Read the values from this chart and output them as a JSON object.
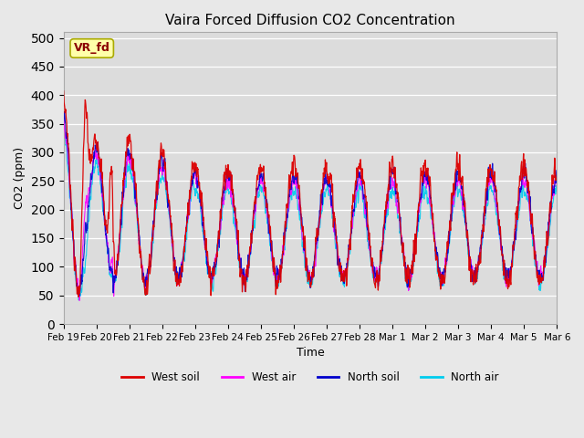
{
  "title": "Vaira Forced Diffusion CO2 Concentration",
  "xlabel": "Time",
  "ylabel": "CO2 (ppm)",
  "ylim": [
    0,
    510
  ],
  "yticks": [
    0,
    50,
    100,
    150,
    200,
    250,
    300,
    350,
    400,
    450,
    500
  ],
  "colors": {
    "west_soil": "#dd0000",
    "west_air": "#ff00ff",
    "north_soil": "#0000cc",
    "north_air": "#00ccee"
  },
  "legend_labels": [
    "West soil",
    "West air",
    "North soil",
    "North air"
  ],
  "annotation_text": "VR_fd",
  "background_color": "#e8e8e8",
  "plot_bg_color": "#dcdcdc",
  "n_points": 2016,
  "n_days": 15,
  "grid_color": "#ffffff",
  "tick_labels": [
    "Feb 19",
    "Feb 20",
    "Feb 21",
    "Feb 22",
    "Feb 23",
    "Feb 24",
    "Feb 25",
    "Feb 26",
    "Feb 27",
    "Feb 28",
    "Mar 1",
    "Mar 2",
    "Mar 3",
    "Mar 4",
    "Mar 5",
    "Mar 6"
  ]
}
